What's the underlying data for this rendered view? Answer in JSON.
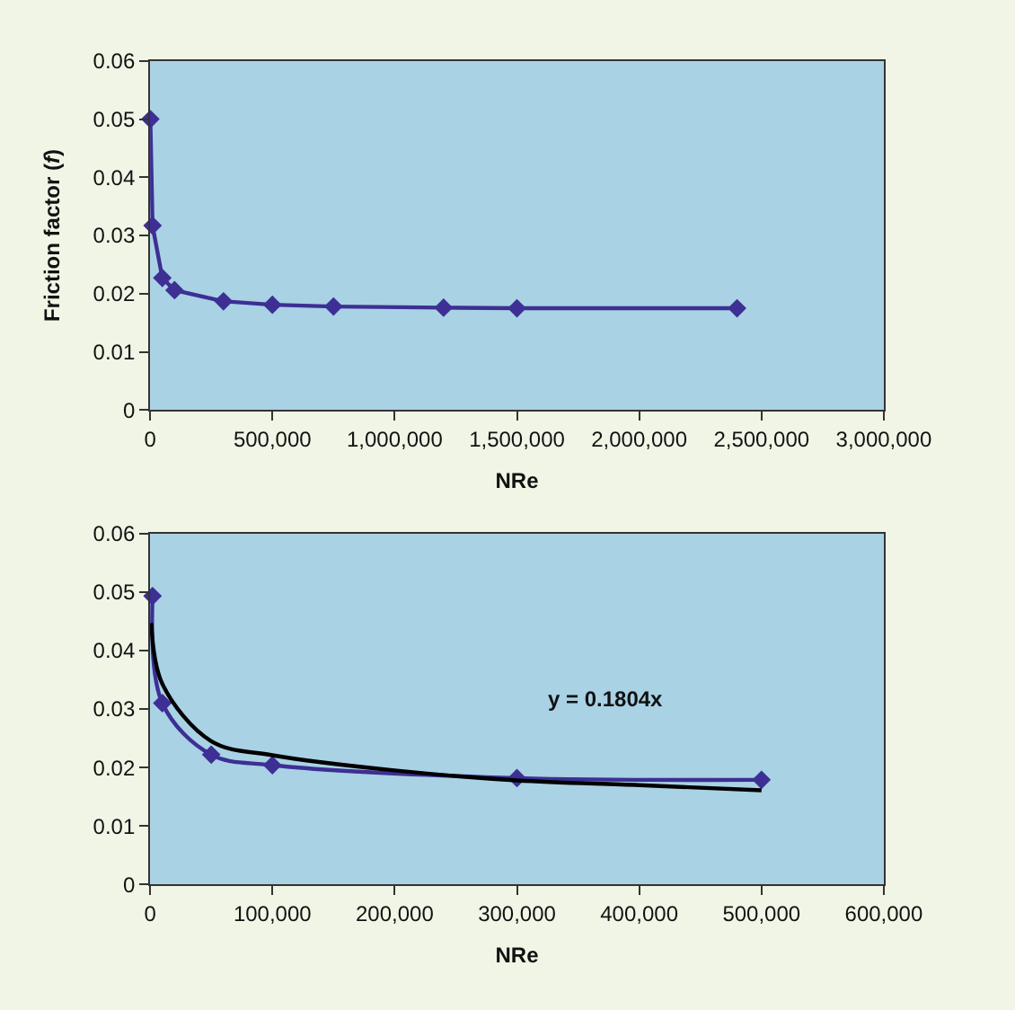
{
  "chart_data": [
    {
      "type": "line",
      "xlabel": "NRe",
      "ylabel": "Friction factor (f)",
      "marker": "diamond",
      "grid": false,
      "series": [
        {
          "color": "#3d2f94",
          "x": [
            1000,
            10000,
            50000,
            100000,
            300000,
            500000,
            750000,
            1200000,
            1500000,
            2400000
          ],
          "values": [
            0.05,
            0.0317,
            0.0227,
            0.0206,
            0.0187,
            0.0181,
            0.0178,
            0.0176,
            0.0175,
            0.0175
          ]
        }
      ],
      "xlim": [
        0,
        3000000
      ],
      "xticks": [
        0,
        {
          "value": 500000,
          "label": "500,000"
        },
        {
          "value": 1000000,
          "label": "1,000,000"
        },
        {
          "value": 1500000,
          "label": "1,500,000"
        },
        {
          "value": 2000000,
          "label": "2,000,000"
        },
        {
          "value": 2500000,
          "label": "2,500,000"
        },
        {
          "value": 3000000,
          "label": "3,000,000"
        }
      ],
      "ylim": [
        0,
        0.06
      ],
      "yticks": [
        0,
        0.01,
        0.02,
        0.03,
        0.04,
        0.05,
        0.06
      ]
    },
    {
      "type": "line",
      "xlabel": "NRe",
      "marker": "diamond",
      "grid": false,
      "annotations": [
        "y = 0.1804x"
      ],
      "series": [
        {
          "color": "#3d2f94",
          "x": [
            2000,
            10000,
            50000,
            100000,
            300000,
            500000
          ],
          "values": [
            0.0493,
            0.031,
            0.0222,
            0.0204,
            0.0182,
            0.0179
          ]
        },
        {
          "color": "#000000",
          "marker": "none",
          "x": [
            1000,
            10000,
            50000,
            100000,
            200000,
            300000,
            400000,
            500000
          ],
          "values": [
            0.0447,
            0.0343,
            0.0245,
            0.0221,
            0.0195,
            0.0178,
            0.017,
            0.0161
          ]
        }
      ],
      "xlim": [
        0,
        600000
      ],
      "xticks": [
        0,
        {
          "value": 100000,
          "label": "100,000"
        },
        {
          "value": 200000,
          "label": "200,000"
        },
        {
          "value": 300000,
          "label": "300,000"
        },
        {
          "value": 400000,
          "label": "400,000"
        },
        {
          "value": 500000,
          "label": "500,000"
        },
        {
          "value": 600000,
          "label": "600,000"
        }
      ],
      "ylim": [
        0,
        0.06
      ],
      "yticks": [
        0,
        0.01,
        0.02,
        0.03,
        0.04,
        0.05,
        0.06
      ]
    }
  ]
}
